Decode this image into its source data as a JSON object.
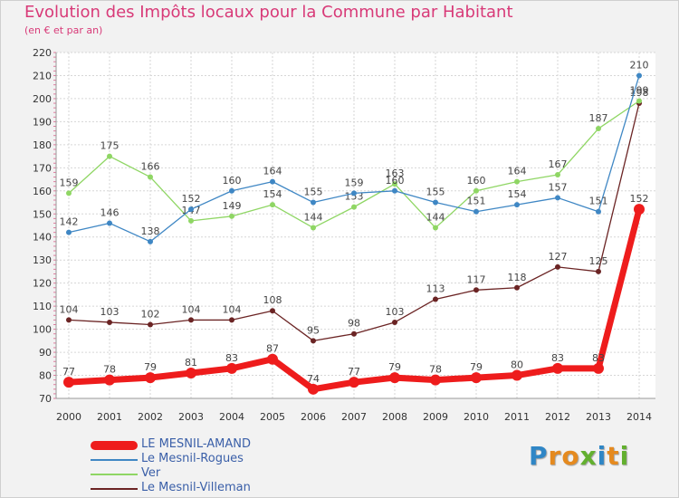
{
  "title": "Evolution des Impôts locaux pour la Commune par Habitant",
  "subtitle": "(en € et par an)",
  "brand": {
    "letters": [
      "P",
      "r",
      "o",
      "x",
      "i",
      "t",
      "i"
    ],
    "colors": [
      "#2f86c6",
      "#e58a1f",
      "#e58a1f",
      "#63b02f",
      "#2f86c6",
      "#e58a1f",
      "#63b02f"
    ]
  },
  "chart_data": {
    "type": "line",
    "title": "Evolution des Impôts locaux pour la Commune par Habitant",
    "subtitle": "(en € et par an)",
    "x": [
      "2000",
      "2001",
      "2002",
      "2003",
      "2004",
      "2005",
      "2006",
      "2007",
      "2008",
      "2009",
      "2010",
      "2011",
      "2012",
      "2013",
      "2014"
    ],
    "ylim": [
      70,
      220
    ],
    "yticks": [
      70,
      80,
      90,
      100,
      110,
      120,
      130,
      140,
      150,
      160,
      170,
      180,
      190,
      200,
      210,
      220
    ],
    "grid": true,
    "legend_position": "bottom-left",
    "series": [
      {
        "name": "Le Mesnil-Villeman",
        "color": "#6b2424",
        "values": [
          104,
          103,
          102,
          104,
          104,
          108,
          95,
          98,
          103,
          113,
          117,
          118,
          127,
          125,
          198
        ]
      },
      {
        "name": "Ver",
        "color": "#8fd664",
        "values": [
          159,
          175,
          166,
          147,
          149,
          154,
          144,
          153,
          163,
          144,
          160,
          164,
          167,
          187,
          199
        ]
      },
      {
        "name": "Le Mesnil-Rogues",
        "color": "#3f87c4",
        "values": [
          142,
          146,
          138,
          152,
          160,
          164,
          155,
          159,
          160,
          155,
          151,
          154,
          157,
          151,
          210
        ]
      },
      {
        "name": "LE MESNIL-AMAND",
        "color": "#ee1c1c",
        "values": [
          77,
          78,
          79,
          81,
          83,
          87,
          74,
          77,
          79,
          78,
          79,
          80,
          83,
          83,
          152
        ]
      }
    ]
  }
}
